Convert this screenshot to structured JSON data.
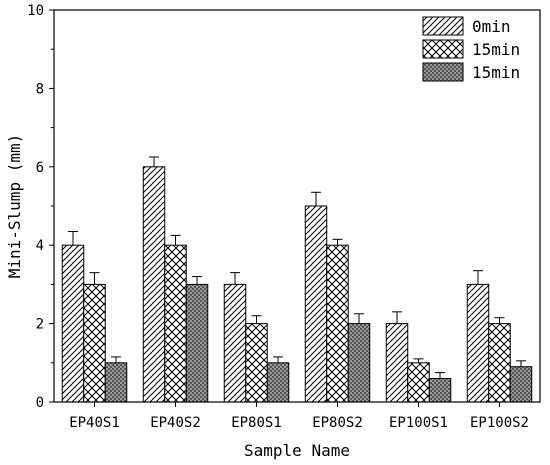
{
  "chart_data": {
    "type": "bar",
    "xlabel": "Sample Name",
    "ylabel": "Mini-Slump (mm)",
    "ylim": [
      0,
      10
    ],
    "yticks": [
      "0",
      "2",
      "4",
      "6",
      "8",
      "10"
    ],
    "categories": [
      "EP40S1",
      "EP40S2",
      "EP80S1",
      "EP80S2",
      "EP100S1",
      "EP100S2"
    ],
    "series": [
      {
        "name": "0min",
        "pattern": "diagonal-hatch",
        "values": [
          4.0,
          6.0,
          3.0,
          5.0,
          2.0,
          3.0
        ],
        "errors": [
          0.35,
          0.25,
          0.3,
          0.35,
          0.3,
          0.35
        ]
      },
      {
        "name": "15min",
        "pattern": "cross-hatch",
        "values": [
          3.0,
          4.0,
          2.0,
          4.0,
          1.0,
          2.0
        ],
        "errors": [
          0.3,
          0.25,
          0.2,
          0.15,
          0.1,
          0.15
        ]
      },
      {
        "name": "15min",
        "pattern": "dense-checker",
        "values": [
          1.0,
          3.0,
          1.0,
          2.0,
          0.6,
          0.9
        ],
        "errors": [
          0.15,
          0.2,
          0.15,
          0.25,
          0.15,
          0.15
        ]
      }
    ],
    "legend_position": "top-right",
    "grid": false,
    "colors": {
      "bar_outline": "#000000",
      "checker_dark": "#555555",
      "checker_light": "#9a9a9a"
    }
  }
}
